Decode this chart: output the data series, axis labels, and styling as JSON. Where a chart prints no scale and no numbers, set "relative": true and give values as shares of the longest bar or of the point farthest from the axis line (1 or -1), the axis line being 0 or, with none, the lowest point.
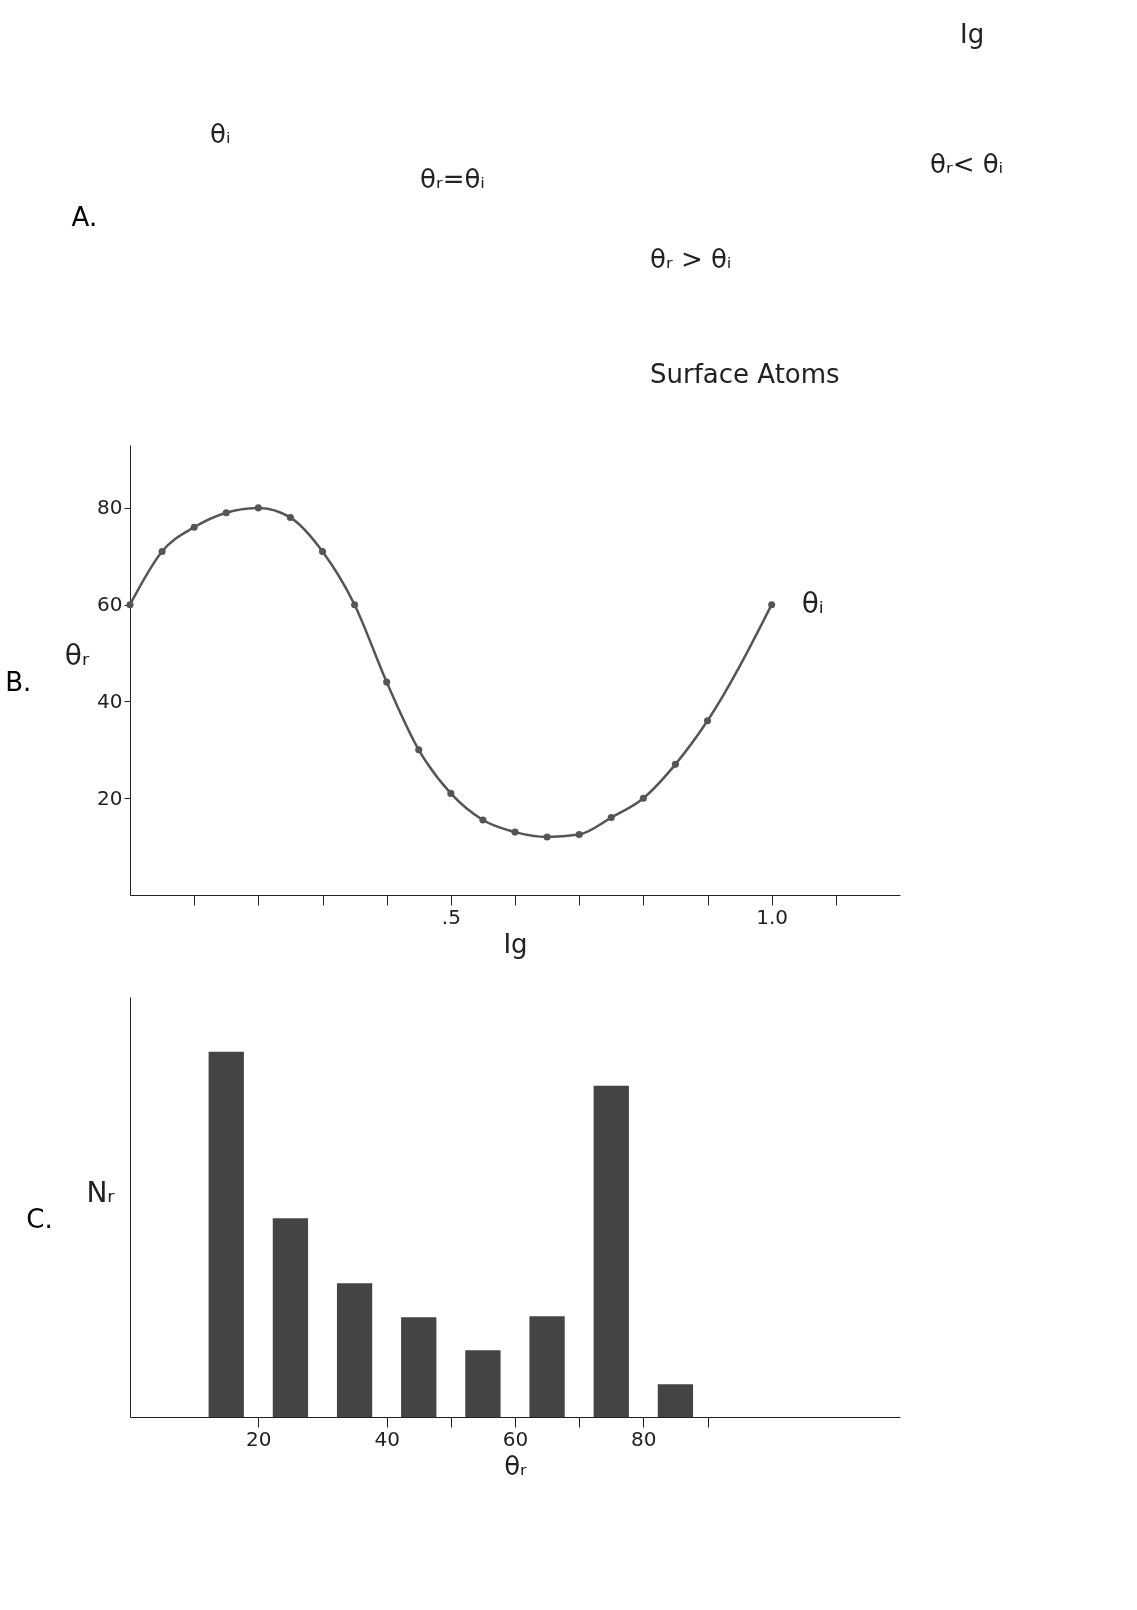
{
  "chart_data": [
    {
      "type": "other",
      "title": "A.",
      "annotations": [
        "Ig",
        "θᵢ",
        "θᵣ=θᵢ",
        "θᵣ > θᵢ",
        "θᵣ< θᵢ",
        "Surface Atoms"
      ]
    },
    {
      "type": "line",
      "title": "B.",
      "xlabel": "Ig",
      "ylabel": "θᵣ",
      "xlim": [
        0,
        1.2
      ],
      "ylim": [
        0,
        93
      ],
      "xticks": [
        {
          "value": 0.1,
          "label": null
        },
        {
          "value": 0.2,
          "label": null
        },
        {
          "value": 0.3,
          "label": null
        },
        {
          "value": 0.4,
          "label": null
        },
        {
          "value": 0.5,
          "label": ".5"
        },
        {
          "value": 0.6,
          "label": null
        },
        {
          "value": 0.7,
          "label": null
        },
        {
          "value": 0.8,
          "label": null
        },
        {
          "value": 0.9,
          "label": null
        },
        {
          "value": 1.0,
          "label": "1.0"
        },
        {
          "value": 1.1,
          "label": null
        }
      ],
      "yticks": [
        20,
        40,
        60,
        80
      ],
      "marker": "circle",
      "series": [
        {
          "color": "#555555",
          "x": [
            0,
            0.05,
            0.1,
            0.15,
            0.2,
            0.25,
            0.3,
            0.35,
            0.4,
            0.45,
            0.5,
            0.55,
            0.6,
            0.65,
            0.7,
            0.75,
            0.8,
            0.85,
            0.9,
            1.0
          ],
          "values": [
            60,
            71,
            76,
            79,
            80,
            78,
            71,
            60,
            44,
            30,
            21,
            15.5,
            13,
            12,
            12.5,
            16,
            20,
            27,
            36,
            60
          ]
        }
      ],
      "annotations": [
        {
          "text": "θᵢ",
          "x": 1.0,
          "y": 60
        }
      ]
    },
    {
      "type": "bar",
      "title": "C.",
      "xlabel": "θᵣ",
      "ylabel": "Nᵣ",
      "relative": true,
      "xlim": [
        0,
        120
      ],
      "xticks": [
        20,
        40,
        {
          "value": 50,
          "label": null
        },
        60,
        {
          "value": 70,
          "label": null
        },
        80,
        {
          "value": 90,
          "label": null
        }
      ],
      "x": [
        15,
        25,
        35,
        45,
        55,
        65,
        75,
        85
      ],
      "series": [
        {
          "color": "#444444",
          "values": [
            1,
            0.544,
            0.366,
            0.273,
            0.183,
            0.276,
            0.907,
            0.09
          ]
        }
      ]
    }
  ]
}
